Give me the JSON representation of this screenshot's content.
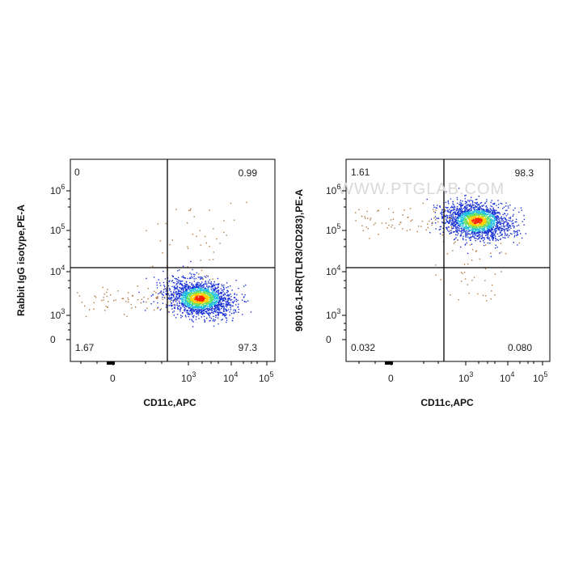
{
  "watermark": "WWW.PTGLAB.COM",
  "colors": {
    "low": "#1a33d6",
    "mid": "#22c0e0",
    "midhigh": "#60e060",
    "high": "#ffd000",
    "peak": "#ff2000",
    "sparse": "#b07840"
  },
  "chart_data": [
    {
      "type": "scatter",
      "subtype": "flow-cytometry-density",
      "xlabel": "CD11c,APC",
      "ylabel": "Rabbit IgG isotype,PE-A",
      "x_ticks": [
        "0",
        "10^3",
        "10^4",
        "10^5"
      ],
      "y_ticks": [
        "0",
        "10^3",
        "10^4",
        "10^5",
        "10^6"
      ],
      "x_scale": "biexponential",
      "y_scale": "biexponential",
      "quadrants": {
        "top_left": "0",
        "top_right": "0.99",
        "bottom_left": "1.67",
        "bottom_right": "97.3"
      },
      "population": {
        "center_x": 1800,
        "center_y": 2500
      }
    },
    {
      "type": "scatter",
      "subtype": "flow-cytometry-density",
      "xlabel": "CD11c,APC",
      "ylabel": "98016-1-RR(TLR3/CD283),PE-A",
      "x_ticks": [
        "0",
        "10^3",
        "10^4",
        "10^5"
      ],
      "y_ticks": [
        "0",
        "10^3",
        "10^4",
        "10^5",
        "10^6"
      ],
      "x_scale": "biexponential",
      "y_scale": "biexponential",
      "quadrants": {
        "top_left": "1.61",
        "top_right": "98.3",
        "bottom_left": "0.032",
        "bottom_right": "0.080"
      },
      "population": {
        "center_x": 1800,
        "center_y": 150000
      }
    }
  ]
}
